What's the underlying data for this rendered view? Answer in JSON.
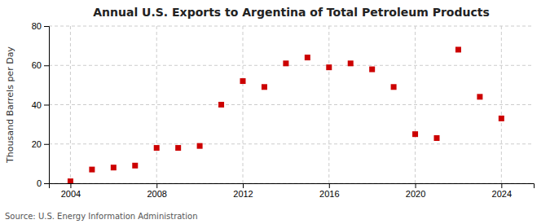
{
  "chart_data": {
    "type": "scatter",
    "title": "Annual U.S. Exports to Argentina of Total Petroleum Products",
    "ylabel": "Thousand Barrels per Day",
    "annotations": [
      "Source: U.S. Energy Information Administration"
    ],
    "x": [
      2004,
      2005,
      2006,
      2007,
      2008,
      2009,
      2010,
      2011,
      2012,
      2013,
      2014,
      2015,
      2016,
      2017,
      2018,
      2019,
      2020,
      2021,
      2022,
      2023,
      2024
    ],
    "values": [
      1,
      7,
      8,
      9,
      18,
      18,
      19,
      40,
      52,
      49,
      61,
      64,
      59,
      61,
      58,
      49,
      25,
      23,
      68,
      44,
      33
    ],
    "color": "#cc0000",
    "marker": "square",
    "xlim": [
      2003.0,
      2025.5
    ],
    "ylim": [
      0,
      80
    ],
    "xticks": [
      2004,
      2008,
      2012,
      2016,
      2020,
      2024
    ],
    "yticks": [
      0,
      20,
      40,
      60,
      80
    ],
    "grid": true
  }
}
